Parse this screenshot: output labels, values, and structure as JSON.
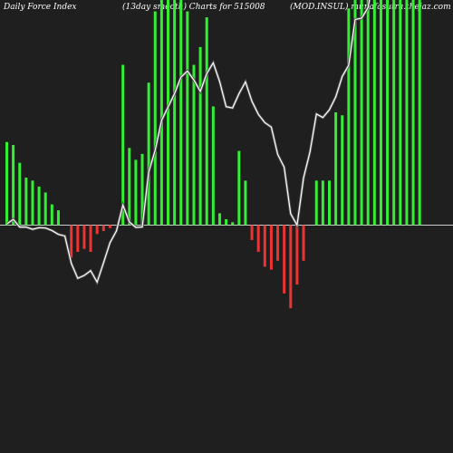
{
  "header": {
    "left": "Daily Force  Index",
    "center": "(13day smooth) Charts for 515008",
    "right": "(MOD.INSUL) munafasutra.thejaz.com"
  },
  "colors": {
    "background": "#1f1f1f",
    "positive": "#33ee33",
    "negative": "#ee3333",
    "line": "#ffffff",
    "zero_line": "#cccccc"
  },
  "chart_data": {
    "type": "bar",
    "title": "",
    "bars": [
      28,
      27,
      21,
      16,
      15,
      13,
      11,
      7,
      5,
      0,
      -11,
      -9,
      -8,
      -9,
      -3,
      -2,
      -1,
      0,
      54,
      26,
      22,
      24,
      48,
      72,
      117,
      129,
      120,
      104,
      72,
      54,
      60,
      70,
      40,
      4,
      2,
      1,
      25,
      15,
      -5,
      -9,
      -14,
      -15,
      -12,
      -23,
      -28,
      -20,
      -12,
      0,
      15,
      15,
      15,
      38,
      37,
      73,
      92,
      138,
      114,
      109,
      106,
      260,
      182,
      146,
      220,
      136,
      115
    ],
    "line": [
      0.4,
      1.8,
      -0.6,
      -0.6,
      -1.3,
      -0.8,
      -0.9,
      -1.7,
      -2.9,
      -3.4,
      -12,
      -16.7,
      -15.8,
      -14.3,
      -17.9,
      -11.8,
      -5.5,
      -1.8,
      6.3,
      1,
      -0.7,
      -0.6,
      16.7,
      23.5,
      32.9,
      37.1,
      41.3,
      46.5,
      48.4,
      45.6,
      42,
      47.6,
      51,
      45.1,
      37.2,
      36.8,
      41.3,
      45,
      38.9,
      34.8,
      32.2,
      30.8,
      22.2,
      18.2,
      3.6,
      0,
      14.8,
      23,
      34.9,
      33.8,
      36.2,
      40.3,
      46.7,
      50.2,
      64.6,
      65,
      68.3,
      79.6,
      83.4,
      87.3,
      99.3,
      103.4,
      105.5,
      111.4,
      117.5
    ],
    "ylim": [
      -32,
      116
    ],
    "line_ylim": [
      -18,
      120
    ],
    "xlabel": "",
    "ylabel": ""
  }
}
